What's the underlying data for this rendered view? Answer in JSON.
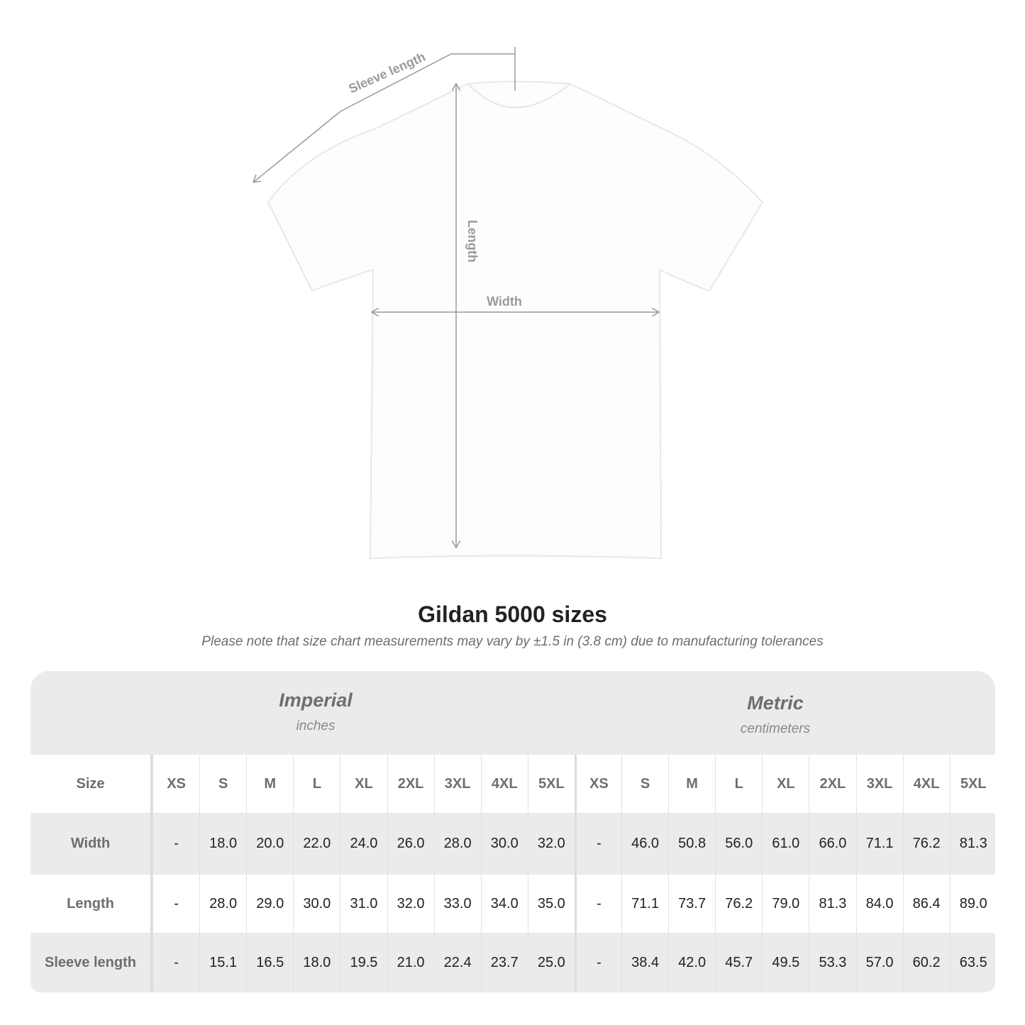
{
  "diagram": {
    "labels": {
      "sleeve": "Sleeve length",
      "length": "Length",
      "width": "Width"
    },
    "line_color": "#9a9a9a"
  },
  "title": "Gildan 5000 sizes",
  "note": "Please note that size chart measurements may vary by ±1.5 in (3.8 cm) due to manufacturing tolerances",
  "table": {
    "imperial": {
      "name": "Imperial",
      "unit": "inches"
    },
    "metric": {
      "name": "Metric",
      "unit": "centimeters"
    },
    "size_label": "Size",
    "sizes": [
      "XS",
      "S",
      "M",
      "L",
      "XL",
      "2XL",
      "3XL",
      "4XL",
      "5XL"
    ],
    "rows": [
      {
        "label": "Width",
        "imperial": [
          "-",
          "18.0",
          "20.0",
          "22.0",
          "24.0",
          "26.0",
          "28.0",
          "30.0",
          "32.0"
        ],
        "metric": [
          "-",
          "46.0",
          "50.8",
          "56.0",
          "61.0",
          "66.0",
          "71.1",
          "76.2",
          "81.3"
        ]
      },
      {
        "label": "Length",
        "imperial": [
          "-",
          "28.0",
          "29.0",
          "30.0",
          "31.0",
          "32.0",
          "33.0",
          "34.0",
          "35.0"
        ],
        "metric": [
          "-",
          "71.1",
          "73.7",
          "76.2",
          "79.0",
          "81.3",
          "84.0",
          "86.4",
          "89.0"
        ]
      },
      {
        "label": "Sleeve length",
        "imperial": [
          "-",
          "15.1",
          "16.5",
          "18.0",
          "19.5",
          "21.0",
          "22.4",
          "23.7",
          "25.0"
        ],
        "metric": [
          "-",
          "38.4",
          "42.0",
          "45.7",
          "49.5",
          "53.3",
          "57.0",
          "60.2",
          "63.5"
        ]
      }
    ],
    "band_color": "#ebebeb"
  }
}
